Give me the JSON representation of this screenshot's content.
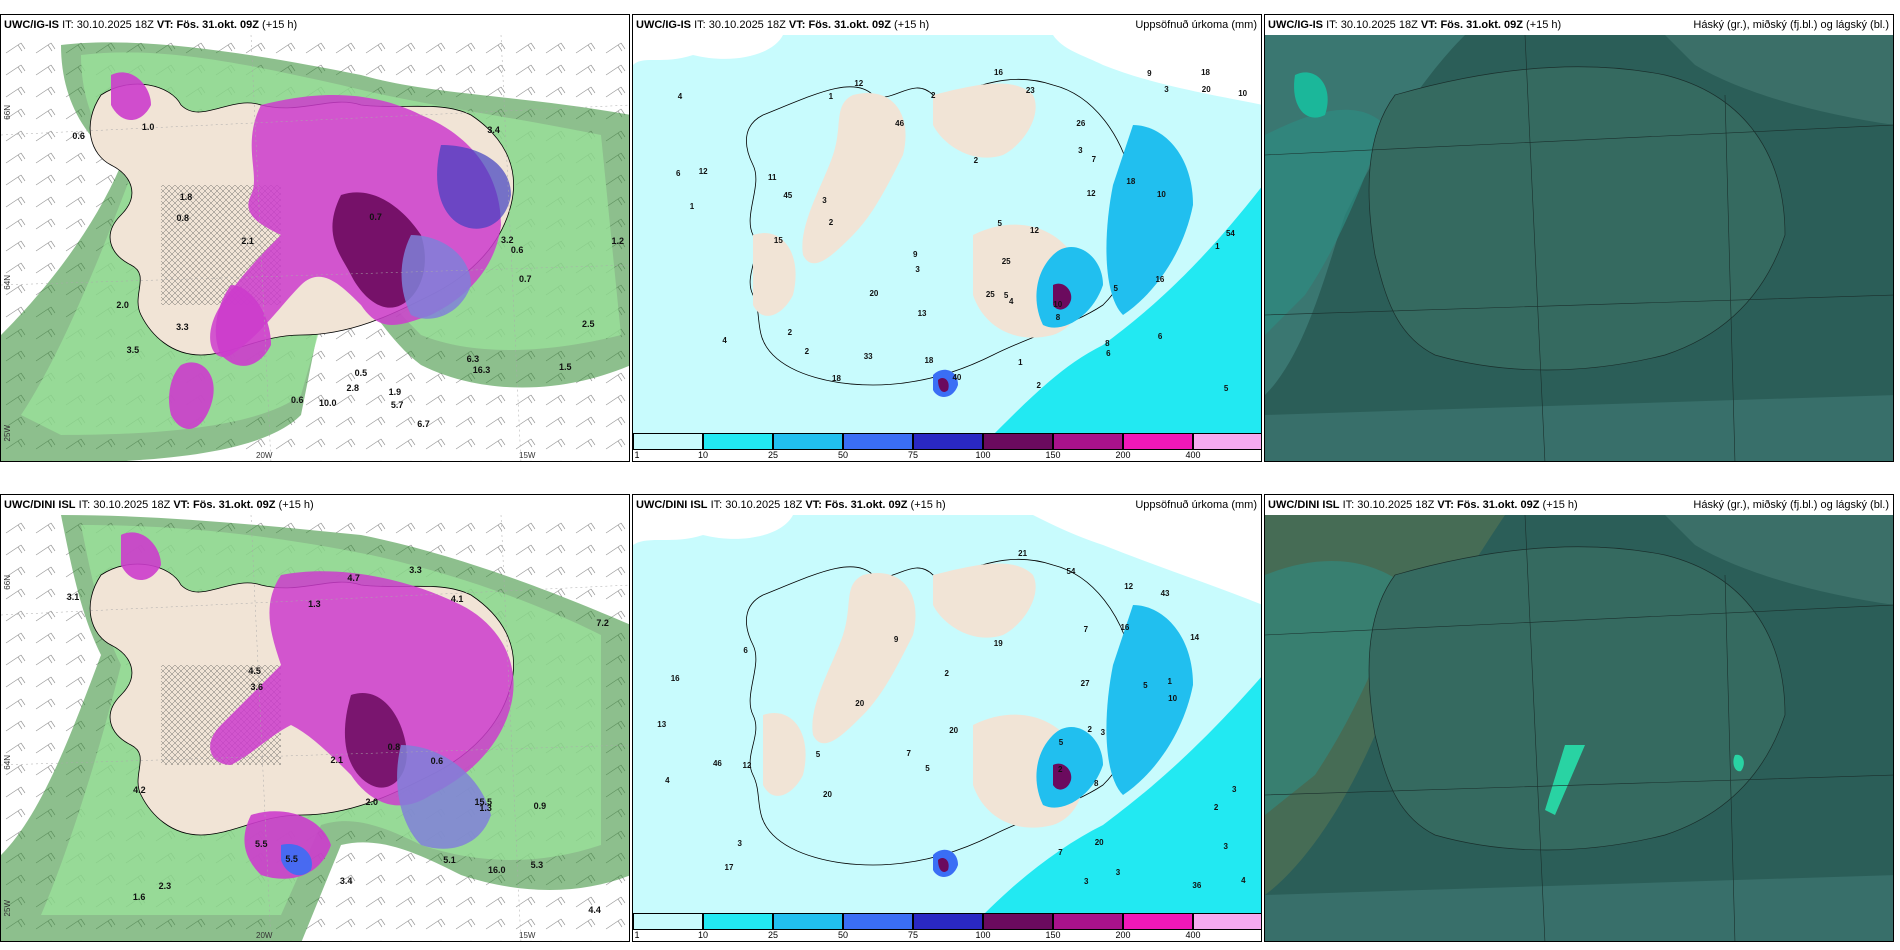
{
  "rows": [
    {
      "model": "UWC/IG-IS",
      "it_label": "IT:",
      "it_value": "30.10.2025 18Z",
      "vt_label": "VT:",
      "vt_value": "Fös. 31.okt. 09Z",
      "lead": "(+15 h)"
    },
    {
      "model": "UWC/DINI ISL",
      "it_label": "IT:",
      "it_value": "30.10.2025 18Z",
      "vt_label": "VT:",
      "vt_value": "Fös. 31.okt. 09Z",
      "lead": "(+15 h)"
    }
  ],
  "panel_titles": {
    "precip": "Uppsöfnuð úrkoma (mm)",
    "cloud": "Háský (gr.), miðský (fj.bl.) og lágský (bl.)"
  },
  "axis_labels": {
    "lat_66": "66N",
    "lat_64": "64N",
    "lat_25": "25W",
    "lon_20": "20W",
    "lon_15": "15W"
  },
  "legend": {
    "thresholds": [
      "1",
      "10",
      "25",
      "50",
      "75",
      "100",
      "150",
      "200",
      "400"
    ],
    "colors": [
      "#c8fbfd",
      "#22e9f2",
      "#21bfef",
      "#3a6ef5",
      "#2a28c4",
      "#6b0a5e",
      "#a8128b",
      "#f018b8",
      "#f6aaf0"
    ]
  },
  "top_precip_values": [
    "2",
    "1",
    "2",
    "11",
    "18",
    "1",
    "1",
    "2",
    "3",
    "2",
    "4",
    "6",
    "9",
    "5",
    "12",
    "9",
    "1",
    "3",
    "5",
    "10",
    "8",
    "4",
    "18",
    "6",
    "12",
    "7",
    "15",
    "45",
    "40",
    "46",
    "8",
    "18",
    "26",
    "33",
    "12",
    "18",
    "16",
    "12",
    "54",
    "10",
    "2",
    "5",
    "10",
    "6",
    "23",
    "16",
    "25",
    "13",
    "25",
    "20",
    "20",
    "2",
    "3",
    "3",
    "4",
    "5"
  ],
  "bottom_precip_values": [
    "2",
    "3",
    "5",
    "2",
    "7",
    "16",
    "1",
    "2",
    "3",
    "3",
    "2",
    "5",
    "4",
    "8",
    "20",
    "36",
    "43",
    "46",
    "12",
    "9",
    "5",
    "13",
    "27",
    "54",
    "10",
    "3",
    "6",
    "7",
    "4",
    "12",
    "14",
    "21",
    "16",
    "20",
    "20",
    "17",
    "19",
    "20",
    "3",
    "3",
    "7",
    "5"
  ],
  "left_values_top": [
    "0.6",
    "0.5",
    "0.7",
    "0.6",
    "1.2",
    "3.5",
    "2.8",
    "2.0",
    "3.2",
    "1.8",
    "3.3",
    "1.5",
    "10.0",
    "6.7",
    "3.4",
    "5.7",
    "6.3",
    "16.3",
    "2.5",
    "0.6",
    "1.0",
    "0.7",
    "0.8",
    "2.1",
    "1.9"
  ],
  "left_values_bottom": [
    "1.6",
    "0.9",
    "0.8",
    "2.0",
    "1.3",
    "3.3",
    "5.3",
    "4.1",
    "16.0",
    "5.5",
    "4.4",
    "3.6",
    "5.5",
    "4.7",
    "5.1",
    "4.5",
    "15.5",
    "4.2",
    "2.1",
    "7.2",
    "3.1",
    "2.3",
    "3.4",
    "0.6",
    "1.3"
  ]
}
